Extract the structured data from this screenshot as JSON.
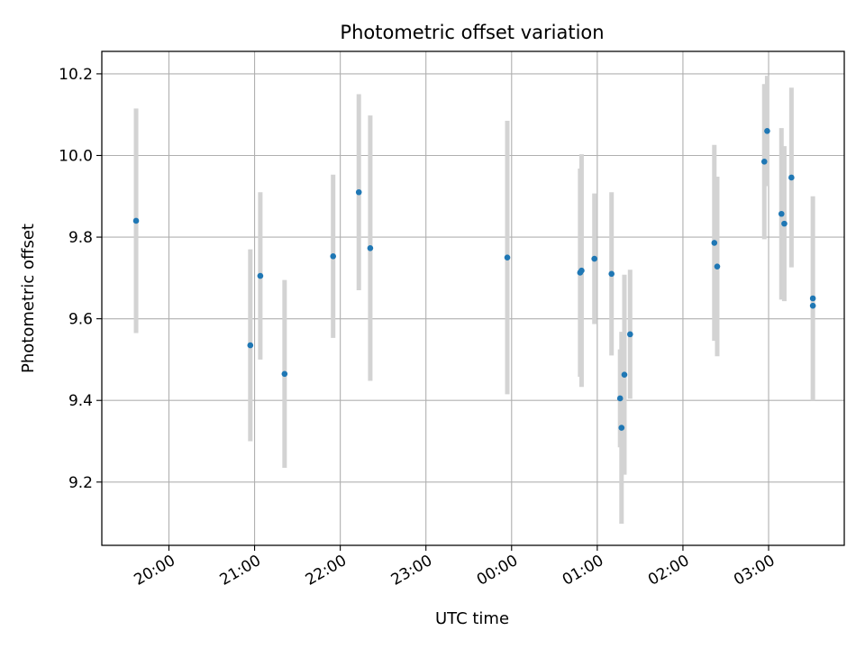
{
  "chart_data": {
    "type": "scatter",
    "title": "Photometric offset variation",
    "xlabel": "UTC time",
    "ylabel": "Photometric offset",
    "x_unit": "UTC time (HH:MM, night spanning midnight)",
    "xlim": [
      "19:13",
      "03:53"
    ],
    "ylim": [
      9.045,
      10.255
    ],
    "x_ticks": [
      "20:00",
      "21:00",
      "22:00",
      "23:00",
      "00:00",
      "01:00",
      "02:00",
      "03:00"
    ],
    "y_ticks": [
      9.2,
      9.4,
      9.6,
      9.8,
      10.0,
      10.2
    ],
    "grid": true,
    "legend": "none",
    "colors": {
      "points": "#1f77b4",
      "errorbars": "#d3d3d3"
    },
    "points": [
      {
        "time": "19:37",
        "y": 9.84,
        "yerr": 0.275
      },
      {
        "time": "20:57",
        "y": 9.535,
        "yerr": 0.235
      },
      {
        "time": "21:04",
        "y": 9.705,
        "yerr": 0.205
      },
      {
        "time": "21:21",
        "y": 9.465,
        "yerr": 0.23
      },
      {
        "time": "21:55",
        "y": 9.753,
        "yerr": 0.2
      },
      {
        "time": "22:13",
        "y": 9.91,
        "yerr": 0.24
      },
      {
        "time": "22:21",
        "y": 9.773,
        "yerr": 0.325
      },
      {
        "time": "23:57",
        "y": 9.75,
        "yerr": 0.335
      },
      {
        "time": "00:48",
        "y": 9.713,
        "yerr": 0.255
      },
      {
        "time": "00:49",
        "y": 9.718,
        "yerr": 0.285
      },
      {
        "time": "00:58",
        "y": 9.747,
        "yerr": 0.16
      },
      {
        "time": "01:10",
        "y": 9.71,
        "yerr": 0.2
      },
      {
        "time": "01:16",
        "y": 9.405,
        "yerr": 0.12
      },
      {
        "time": "01:17",
        "y": 9.333,
        "yerr": 0.235
      },
      {
        "time": "01:19",
        "y": 9.463,
        "yerr": 0.245
      },
      {
        "time": "01:23",
        "y": 9.562,
        "yerr": 0.158
      },
      {
        "time": "02:22",
        "y": 9.786,
        "yerr": 0.24
      },
      {
        "time": "02:24",
        "y": 9.728,
        "yerr": 0.22
      },
      {
        "time": "02:57",
        "y": 9.985,
        "yerr": 0.19
      },
      {
        "time": "02:59",
        "y": 10.06,
        "yerr": 0.135
      },
      {
        "time": "03:09",
        "y": 9.857,
        "yerr": 0.21
      },
      {
        "time": "03:11",
        "y": 9.833,
        "yerr": 0.19
      },
      {
        "time": "03:16",
        "y": 9.946,
        "yerr": 0.22
      },
      {
        "time": "03:31",
        "y": 9.65,
        "yerr": 0.25
      },
      {
        "time": "03:31",
        "y": 9.632,
        "yerr": 0.0
      }
    ]
  }
}
